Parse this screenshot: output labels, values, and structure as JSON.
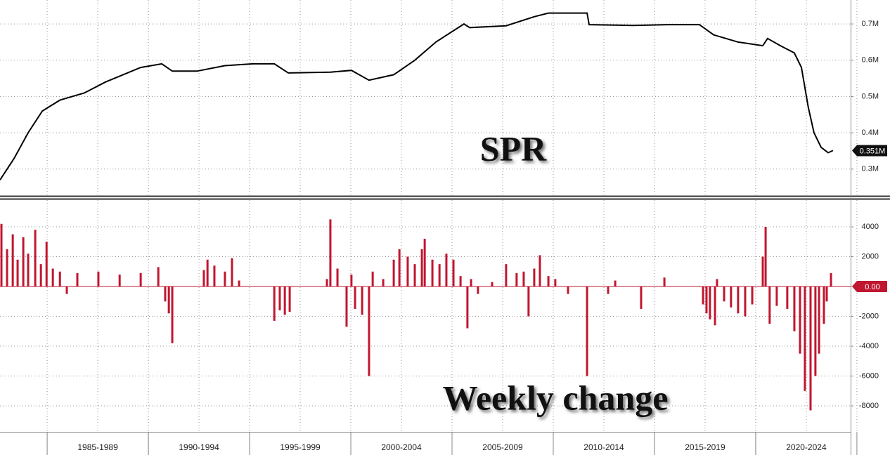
{
  "chart_data": [
    {
      "type": "line",
      "annotation": "SPR",
      "color": "#000000",
      "x": [
        1982.67,
        1983.37,
        1984.06,
        1984.76,
        1985.63,
        1986.84,
        1987.88,
        1989.62,
        1990.66,
        1991.18,
        1992.4,
        1993.78,
        1995.17,
        1996.22,
        1996.91,
        1999.0,
        2000.03,
        2000.9,
        2002.12,
        2003.16,
        2004.2,
        2005.59,
        2005.87,
        2007.67,
        2009.06,
        2009.76,
        2011.67,
        2011.77,
        2013.92,
        2015.66,
        2017.22,
        2017.92,
        2019.13,
        2020.35,
        2020.59,
        2021.22,
        2021.91,
        2022.26,
        2022.6,
        2022.88,
        2023.23,
        2023.58,
        2023.82
      ],
      "values": [
        0.27,
        0.33,
        0.4,
        0.46,
        0.49,
        0.51,
        0.54,
        0.58,
        0.59,
        0.57,
        0.57,
        0.585,
        0.59,
        0.59,
        0.565,
        0.567,
        0.572,
        0.545,
        0.56,
        0.6,
        0.65,
        0.7,
        0.69,
        0.695,
        0.72,
        0.73,
        0.73,
        0.698,
        0.696,
        0.698,
        0.698,
        0.67,
        0.65,
        0.64,
        0.66,
        0.64,
        0.62,
        0.58,
        0.47,
        0.4,
        0.36,
        0.345,
        0.351
      ],
      "xlim": [
        1982.67,
        2024.69
      ],
      "ylim": [
        0.228,
        0.766
      ],
      "yticks": [
        {
          "value": 0.3,
          "label": "0.3M"
        },
        {
          "value": 0.4,
          "label": "0.4M"
        },
        {
          "value": 0.5,
          "label": "0.5M"
        },
        {
          "value": 0.6,
          "label": "0.6M"
        },
        {
          "value": 0.7,
          "label": "0.7M"
        }
      ],
      "last_label": {
        "value": 0.351,
        "label": "0.351M"
      },
      "grid": true
    },
    {
      "type": "bar",
      "annotation": "Weekly change",
      "color": "#c0162f",
      "x": [
        1982.74,
        1983.02,
        1983.3,
        1983.54,
        1983.82,
        1984.06,
        1984.41,
        1984.69,
        1984.97,
        1985.28,
        1985.63,
        1985.97,
        1986.49,
        1987.53,
        1988.58,
        1989.62,
        1990.49,
        1990.83,
        1991.01,
        1991.18,
        1992.74,
        1992.92,
        1993.26,
        1993.78,
        1994.13,
        1994.48,
        1996.22,
        1996.49,
        1996.74,
        1996.98,
        1998.82,
        1998.99,
        1999.34,
        1999.79,
        2000.03,
        2000.21,
        2000.56,
        2000.9,
        2001.08,
        2001.6,
        2002.12,
        2002.4,
        2002.81,
        2003.16,
        2003.51,
        2003.65,
        2004.03,
        2004.38,
        2004.72,
        2005.07,
        2005.42,
        2005.76,
        2005.94,
        2006.28,
        2006.98,
        2007.67,
        2008.19,
        2008.54,
        2008.78,
        2009.06,
        2009.34,
        2009.76,
        2010.1,
        2010.73,
        2011.67,
        2012.71,
        2013.06,
        2014.34,
        2015.49,
        2017.4,
        2017.57,
        2017.74,
        2017.99,
        2018.09,
        2018.44,
        2018.78,
        2019.13,
        2019.48,
        2019.83,
        2020.35,
        2020.49,
        2020.69,
        2021.04,
        2021.56,
        2021.91,
        2022.19,
        2022.43,
        2022.71,
        2022.95,
        2023.13,
        2023.37,
        2023.51,
        2023.72
      ],
      "values": [
        4200,
        2500,
        3500,
        1800,
        3300,
        2200,
        3800,
        1500,
        3000,
        1200,
        1000,
        -500,
        900,
        1000,
        800,
        900,
        1300,
        -1000,
        -1800,
        -3800,
        1100,
        1800,
        1400,
        1000,
        1900,
        400,
        -2300,
        -1600,
        -1900,
        -1700,
        500,
        4500,
        1200,
        -2700,
        800,
        -1500,
        -1900,
        -6000,
        1000,
        500,
        1800,
        2500,
        2000,
        1500,
        2500,
        3200,
        1800,
        1500,
        2200,
        1800,
        700,
        -2800,
        500,
        -500,
        300,
        1500,
        900,
        1000,
        -2000,
        1200,
        2100,
        700,
        500,
        -500,
        -6000,
        -500,
        400,
        -1500,
        600,
        -1200,
        -1800,
        -2200,
        -2600,
        500,
        -1000,
        -1400,
        -1800,
        -2000,
        -1200,
        2000,
        4000,
        -2500,
        -1300,
        -1500,
        -3000,
        -4500,
        -7000,
        -8300,
        -6000,
        -4500,
        -2500,
        -1000,
        900
      ],
      "xlim": [
        1982.67,
        2024.69
      ],
      "ylim": [
        -9740,
        5790
      ],
      "yticks": [
        4000,
        2000,
        0,
        -2000,
        -4000,
        -6000,
        -8000
      ],
      "xticks": [
        {
          "value": 1987.5,
          "label": "1985-1989"
        },
        {
          "value": 1992.5,
          "label": "1990-1994"
        },
        {
          "value": 1997.5,
          "label": "1995-1999"
        },
        {
          "value": 2002.5,
          "label": "2000-2004"
        },
        {
          "value": 2007.5,
          "label": "2005-2009"
        },
        {
          "value": 2012.5,
          "label": "2010-2014"
        },
        {
          "value": 2017.5,
          "label": "2015-2019"
        },
        {
          "value": 2022.5,
          "label": "2020-2024"
        }
      ],
      "last_label": {
        "value": 0,
        "label": "0.00"
      },
      "grid": true
    }
  ]
}
